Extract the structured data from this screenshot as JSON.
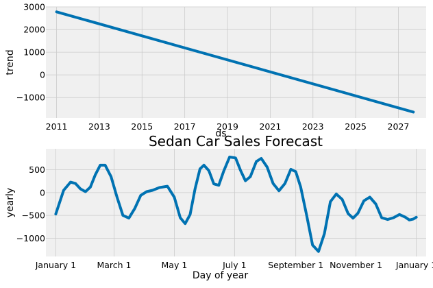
{
  "chart_data": [
    {
      "type": "line",
      "xlabel": "ds",
      "ylabel": "trend",
      "xlim": [
        2010.5,
        2028.3
      ],
      "ylim": [
        -1900,
        3000
      ],
      "xticks": [
        2011,
        2013,
        2015,
        2017,
        2019,
        2021,
        2023,
        2025,
        2027
      ],
      "xtick_labels": [
        "2011",
        "2013",
        "2015",
        "2017",
        "2019",
        "2021",
        "2023",
        "2025",
        "2027"
      ],
      "yticks": [
        3000,
        2000,
        1000,
        0,
        -1000
      ],
      "ytick_labels": [
        "3000",
        "2000",
        "1000",
        "0",
        "−1000"
      ],
      "grid": true,
      "series": [
        {
          "x": [
            2011.0,
            2027.7
          ],
          "y": [
            2780,
            -1640
          ]
        }
      ]
    },
    {
      "type": "line",
      "title": "Sedan Car Sales Forecast",
      "xlabel": "Day of year",
      "ylabel": "yearly",
      "xlim": [
        -10,
        375
      ],
      "ylim": [
        -1400,
        960
      ],
      "xticks": [
        0,
        59,
        120,
        181,
        243,
        304,
        365
      ],
      "xtick_labels": [
        "January 1",
        "March 1",
        "May 1",
        "July 1",
        "September 1",
        "November 1",
        "January 1"
      ],
      "yticks": [
        500,
        0,
        -500,
        -1000
      ],
      "ytick_labels": [
        "500",
        "0",
        "−500",
        "−1000"
      ],
      "grid": true,
      "series": [
        {
          "x": [
            0,
            8,
            15,
            20,
            25,
            30,
            35,
            40,
            45,
            50,
            56,
            62,
            68,
            74,
            80,
            86,
            92,
            98,
            105,
            113,
            120,
            126,
            131,
            136,
            141,
            146,
            150,
            155,
            160,
            165,
            170,
            176,
            182,
            187,
            192,
            197,
            203,
            208,
            214,
            220,
            226,
            232,
            238,
            243,
            248,
            254,
            260,
            266,
            272,
            278,
            284,
            290,
            296,
            301,
            306,
            312,
            318,
            324,
            330,
            336,
            342,
            348,
            354,
            358,
            362,
            365
          ],
          "y": [
            -470,
            50,
            230,
            200,
            80,
            20,
            120,
            390,
            600,
            600,
            350,
            -100,
            -500,
            -560,
            -350,
            -60,
            20,
            50,
            110,
            140,
            -100,
            -550,
            -680,
            -480,
            80,
            520,
            600,
            480,
            190,
            160,
            470,
            780,
            760,
            490,
            260,
            350,
            680,
            750,
            560,
            200,
            40,
            200,
            510,
            460,
            120,
            -500,
            -1150,
            -1290,
            -900,
            -200,
            -30,
            -150,
            -460,
            -560,
            -450,
            -180,
            -100,
            -250,
            -550,
            -590,
            -550,
            -480,
            -540,
            -600,
            -580,
            -540
          ]
        }
      ]
    }
  ]
}
